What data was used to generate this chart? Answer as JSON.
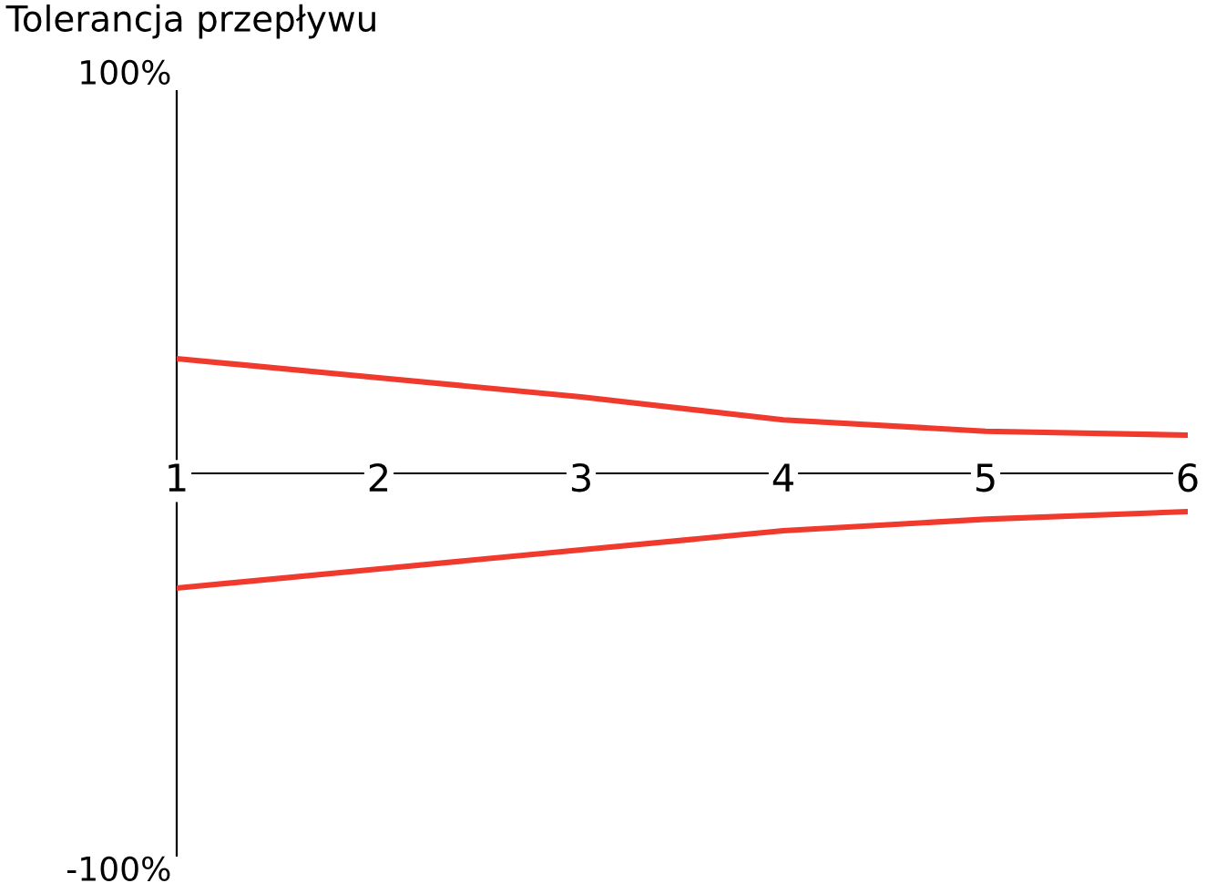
{
  "chart_data": {
    "type": "line",
    "title": "Tolerancja przepływu",
    "x": [
      1,
      2,
      3,
      4,
      5,
      6
    ],
    "series": [
      {
        "color": "#f03a2e",
        "values": [
          30,
          25,
          20,
          14,
          11,
          10
        ]
      },
      {
        "color": "#f03a2e",
        "values": [
          -30,
          -25,
          -20,
          -15,
          -12,
          -10
        ]
      }
    ],
    "xlim": [
      1,
      6
    ],
    "xticks": [
      1,
      2,
      3,
      4,
      5,
      6
    ],
    "ylim": [
      -100,
      100
    ],
    "yticks": [
      {
        "value": 100,
        "label": "100%"
      },
      {
        "value": -100,
        "label": "-100%"
      }
    ],
    "grid": false,
    "legend": false,
    "marker": "none",
    "line_style": "solid"
  }
}
